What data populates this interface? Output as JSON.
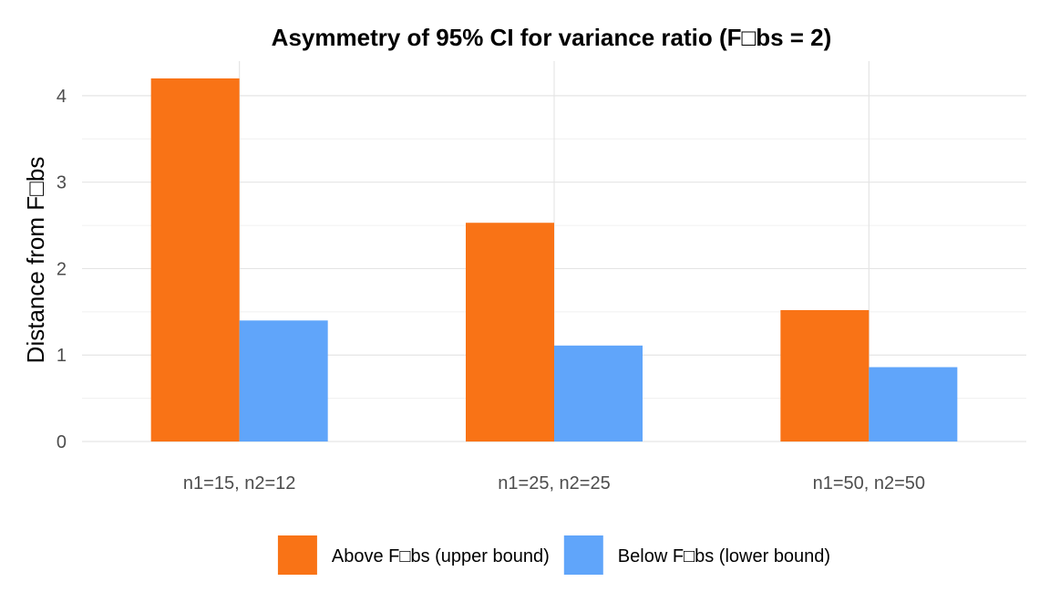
{
  "chart_data": {
    "type": "bar",
    "title": "Asymmetry of 95% CI for variance ratio (F□bs = 2)",
    "xlabel": "",
    "ylabel": "Distance from F□bs",
    "categories": [
      "n1=15, n2=12",
      "n1=25, n2=25",
      "n1=50, n2=50"
    ],
    "series": [
      {
        "name": "Above F□bs (upper bound)",
        "color": "#f97316",
        "values": [
          4.2,
          2.53,
          1.52
        ]
      },
      {
        "name": "Below F□bs (lower bound)",
        "color": "#60a5fa",
        "values": [
          1.4,
          1.11,
          0.86
        ]
      }
    ],
    "ylim": [
      0,
      4.4
    ],
    "yticks": [
      "0",
      "1",
      "2",
      "3",
      "4"
    ],
    "grid": true,
    "legend_position": "bottom"
  }
}
